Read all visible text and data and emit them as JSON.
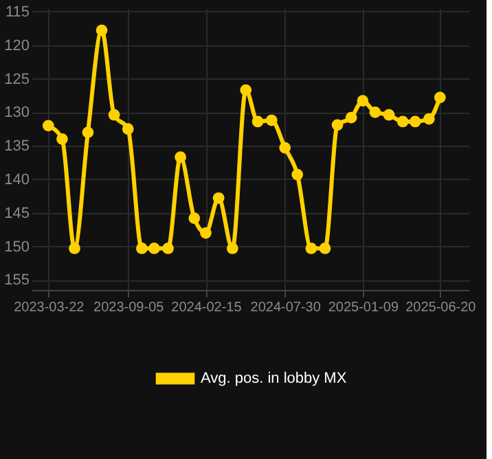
{
  "chart_data": {
    "type": "line",
    "series": [
      {
        "name": "Avg. pos. in lobby MX",
        "color": "#ffd100",
        "x": [
          "2023-03-22",
          "2023-04-20",
          "2023-05-16",
          "2023-06-13",
          "2023-07-12",
          "2023-08-07",
          "2023-09-05",
          "2023-10-04",
          "2023-10-30",
          "2023-11-28",
          "2023-12-24",
          "2024-01-22",
          "2024-02-15",
          "2024-03-13",
          "2024-04-11",
          "2024-05-09",
          "2024-06-03",
          "2024-07-02",
          "2024-07-30",
          "2024-08-25",
          "2024-09-23",
          "2024-10-22",
          "2024-11-17",
          "2024-12-16",
          "2025-01-09",
          "2025-02-04",
          "2025-03-05",
          "2025-04-03",
          "2025-04-29",
          "2025-05-28",
          "2025-06-20"
        ],
        "values": [
          132,
          134,
          150.3,
          133,
          117.8,
          130.4,
          132.5,
          150.3,
          150.3,
          150.3,
          136.7,
          145.8,
          148,
          142.8,
          150.3,
          126.7,
          131.4,
          131.2,
          135.3,
          139.3,
          150.3,
          150.3,
          131.9,
          130.8,
          128.3,
          130,
          130.4,
          131.4,
          131.4,
          131,
          127.8
        ]
      }
    ],
    "xlim": [
      "2023-02-15",
      "2025-08-19"
    ],
    "xticks": [
      "2023-03-22",
      "2023-09-05",
      "2024-02-15",
      "2024-07-30",
      "2025-01-09",
      "2025-06-20"
    ],
    "ylim": [
      156.5,
      114.5
    ],
    "yticks": [
      115,
      120,
      125,
      130,
      135,
      140,
      145,
      150,
      155
    ],
    "grid": true,
    "legend": "bottom",
    "marker": "circle",
    "line_style": "solid"
  }
}
